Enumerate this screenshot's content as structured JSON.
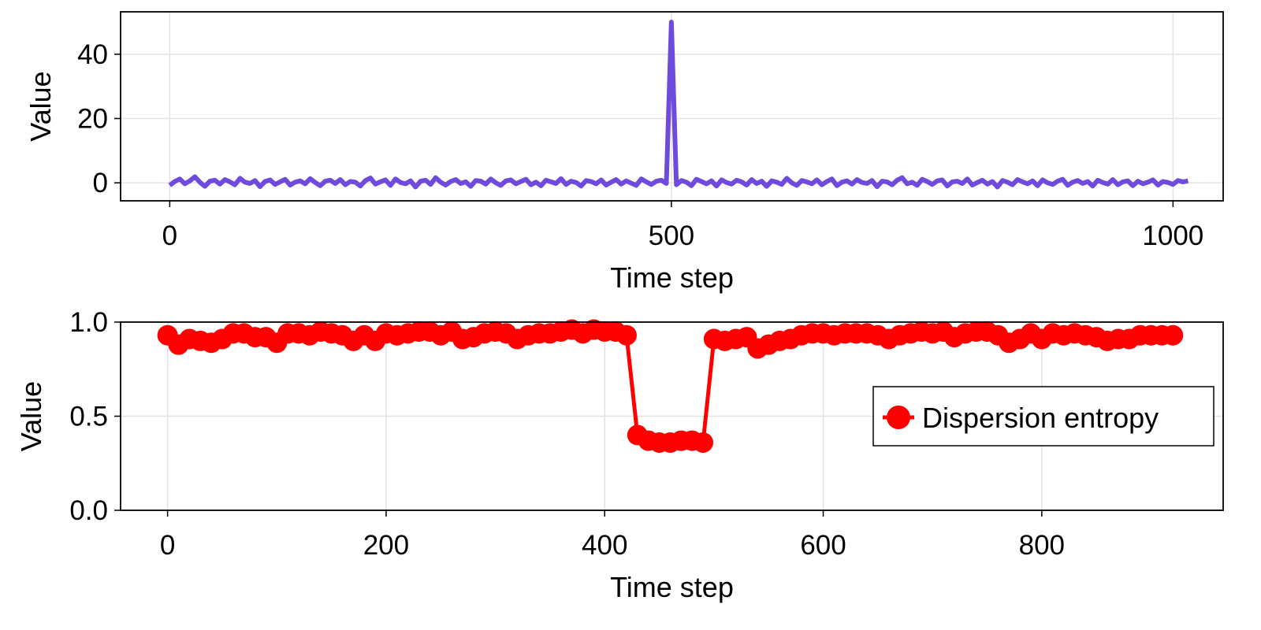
{
  "chart_data": [
    {
      "type": "line",
      "title": "",
      "xlabel": "Time step",
      "ylabel": "Value",
      "xlim": [
        -49,
        1050
      ],
      "ylim": [
        -5.6,
        53.2
      ],
      "xticks": [
        0,
        500,
        1000
      ],
      "xtick_labels": [
        "0",
        "500",
        "1000"
      ],
      "yticks": [
        0,
        20,
        40
      ],
      "ytick_labels": [
        "0",
        "20",
        "40"
      ],
      "grid": true,
      "color": "#6e4bdc",
      "x_step": 5,
      "x_start": 0,
      "values": [
        -0.8,
        0.4,
        1.2,
        -0.3,
        0.6,
        1.9,
        0.2,
        -1.1,
        0.5,
        0.8,
        -0.4,
        1.0,
        0.3,
        -0.6,
        1.4,
        0.2,
        -0.2,
        0.7,
        -1.2,
        0.4,
        0.9,
        -0.5,
        0.3,
        1.1,
        -0.7,
        0.2,
        0.6,
        -0.3,
        1.3,
        0.1,
        -0.9,
        0.5,
        0.8,
        -0.2,
        1.0,
        -0.6,
        0.4,
        0.2,
        -1.0,
        0.7,
        1.5,
        -0.4,
        0.3,
        0.9,
        -0.8,
        1.2,
        0.1,
        -0.3,
        0.6,
        -1.3,
        0.5,
        0.8,
        -0.5,
        1.6,
        0.2,
        -0.7,
        0.4,
        1.0,
        -0.2,
        0.3,
        -1.1,
        0.7,
        0.5,
        -0.4,
        1.2,
        0.0,
        -0.8,
        0.6,
        0.9,
        -0.3,
        0.4,
        1.1,
        -0.6,
        0.2,
        -0.9,
        0.8,
        0.3,
        -0.2,
        1.3,
        -0.5,
        0.5,
        0.1,
        -1.0,
        0.7,
        0.4,
        -0.3,
        0.9,
        -0.7,
        0.2,
        1.0,
        -0.4,
        0.6,
        -0.1,
        -0.8,
        1.2,
        0.3,
        -0.5,
        0.5,
        0.8,
        -0.2,
        50.0,
        -0.6,
        0.7,
        0.2,
        -0.9,
        1.1,
        0.4,
        -0.3,
        0.6,
        -1.0,
        0.9,
        0.1,
        -0.4,
        0.8,
        0.3,
        -0.7,
        1.0,
        -0.2,
        0.5,
        -1.1,
        0.6,
        0.2,
        -0.5,
        1.4,
        0.0,
        -0.8,
        0.7,
        0.3,
        -0.3,
        0.9,
        -0.6,
        0.4,
        1.2,
        -0.9,
        0.2,
        0.6,
        -0.4,
        1.0,
        0.1,
        -0.2,
        0.7,
        -1.2,
        0.5,
        0.3,
        -0.6,
        0.8,
        1.6,
        -0.3,
        0.2,
        -0.8,
        1.1,
        0.4,
        -0.5,
        0.6,
        0.9,
        -1.0,
        0.3,
        0.5,
        -0.2,
        1.2,
        -0.7,
        0.1,
        0.8,
        -0.4,
        0.4,
        -1.3,
        0.7,
        0.2,
        -0.6,
        1.0,
        0.3,
        -0.3,
        0.6,
        -0.9,
        0.9,
        0.0,
        -0.5,
        0.5,
        1.1,
        -0.8,
        0.2,
        0.7,
        -0.2,
        0.4,
        -1.0,
        0.8,
        0.1,
        -0.4,
        1.0,
        -0.6,
        0.3,
        0.6,
        -0.9,
        0.5,
        -0.3,
        0.2,
        0.9,
        -0.7,
        0.4,
        0.1,
        -0.5,
        0.7,
        0.3,
        0.6
      ]
    },
    {
      "type": "line",
      "title": "",
      "xlabel": "Time step",
      "ylabel": "Value",
      "xlim": [
        -43,
        966
      ],
      "ylim": [
        0.0,
        1.0
      ],
      "xticks": [
        0,
        200,
        400,
        600,
        800
      ],
      "xtick_labels": [
        "0",
        "200",
        "400",
        "600",
        "800"
      ],
      "yticks": [
        0.0,
        0.5,
        1.0
      ],
      "ytick_labels": [
        "0.0",
        "0.5",
        "1.0"
      ],
      "grid": true,
      "legend": {
        "position": "right",
        "entries": [
          "Dispersion entropy"
        ]
      },
      "series": [
        {
          "name": "Dispersion entropy",
          "color": "#ff0000",
          "marker": "circle",
          "x_start": 0,
          "x_step": 10,
          "values": [
            0.93,
            0.88,
            0.91,
            0.9,
            0.89,
            0.91,
            0.94,
            0.94,
            0.92,
            0.92,
            0.89,
            0.94,
            0.94,
            0.93,
            0.95,
            0.94,
            0.93,
            0.9,
            0.93,
            0.9,
            0.94,
            0.93,
            0.94,
            0.95,
            0.95,
            0.93,
            0.95,
            0.91,
            0.92,
            0.94,
            0.95,
            0.94,
            0.91,
            0.93,
            0.94,
            0.94,
            0.95,
            0.96,
            0.94,
            0.96,
            0.95,
            0.95,
            0.93,
            0.4,
            0.37,
            0.36,
            0.36,
            0.37,
            0.37,
            0.36,
            0.91,
            0.9,
            0.91,
            0.92,
            0.86,
            0.88,
            0.9,
            0.91,
            0.93,
            0.94,
            0.94,
            0.93,
            0.94,
            0.94,
            0.94,
            0.93,
            0.91,
            0.93,
            0.94,
            0.95,
            0.94,
            0.95,
            0.92,
            0.94,
            0.95,
            0.95,
            0.93,
            0.89,
            0.91,
            0.94,
            0.91,
            0.94,
            0.93,
            0.94,
            0.93,
            0.92,
            0.9,
            0.91,
            0.91,
            0.93,
            0.93,
            0.93,
            0.93
          ]
        }
      ]
    }
  ]
}
